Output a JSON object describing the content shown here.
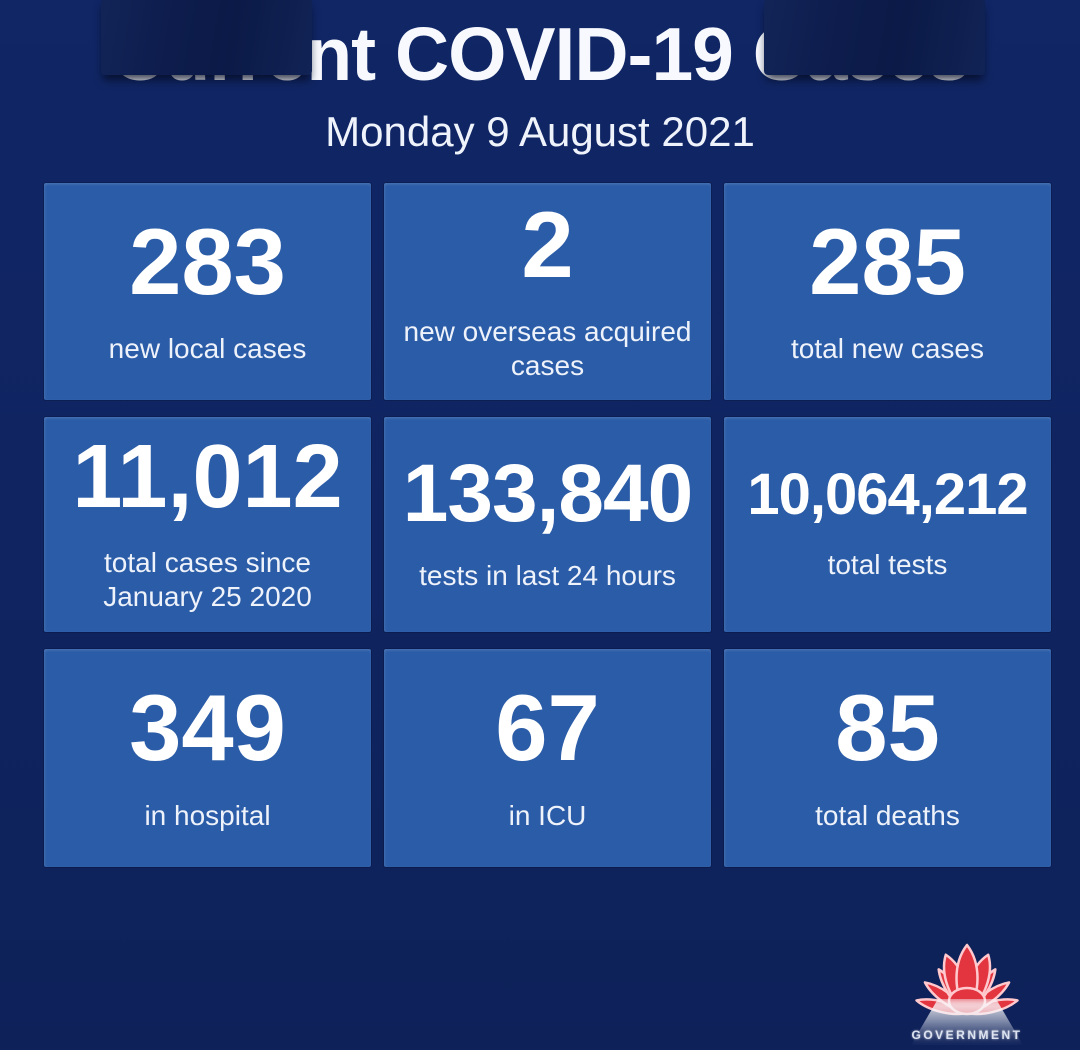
{
  "colors": {
    "background": "#0F2460",
    "tile_blue": "#2B5CA7",
    "text_white": "#FFFFFF",
    "redaction_navy": "#0D1C4C",
    "logo_red": "#E23540",
    "logo_petal_outline": "#FFC9CE"
  },
  "header": {
    "title_hidden_left": "Curre",
    "title_visible": "nt COVID-19 ",
    "title_hidden_right": "Cases",
    "date": "Monday 9 August 2021"
  },
  "stats": [
    {
      "value": "283",
      "label": "new local cases"
    },
    {
      "value": "2",
      "label": "new overseas acquired cases"
    },
    {
      "value": "285",
      "label": "total new cases"
    },
    {
      "value": "11,012",
      "label": "total cases since January 25 2020"
    },
    {
      "value": "133,840",
      "label": "tests in last 24 hours"
    },
    {
      "value": "10,064,212",
      "label": "total tests"
    },
    {
      "value": "349",
      "label": "in hospital"
    },
    {
      "value": "67",
      "label": "in ICU"
    },
    {
      "value": "85",
      "label": "total deaths"
    }
  ],
  "logo": {
    "icon": "waratah-flower-icon",
    "caption": "GOVERNMENT"
  },
  "chart_data": {
    "type": "table",
    "title_visible": "nt COVID-19",
    "date": "Monday 9 August 2021",
    "metrics": [
      {
        "label": "new local cases",
        "value": 283
      },
      {
        "label": "new overseas acquired cases",
        "value": 2
      },
      {
        "label": "total new cases",
        "value": 285
      },
      {
        "label": "total cases since January 25 2020",
        "value": 11012
      },
      {
        "label": "tests in last 24 hours",
        "value": 133840
      },
      {
        "label": "total tests",
        "value": 10064212
      },
      {
        "label": "in hospital",
        "value": 349
      },
      {
        "label": "in ICU",
        "value": 67
      },
      {
        "label": "total deaths",
        "value": 85
      }
    ]
  }
}
